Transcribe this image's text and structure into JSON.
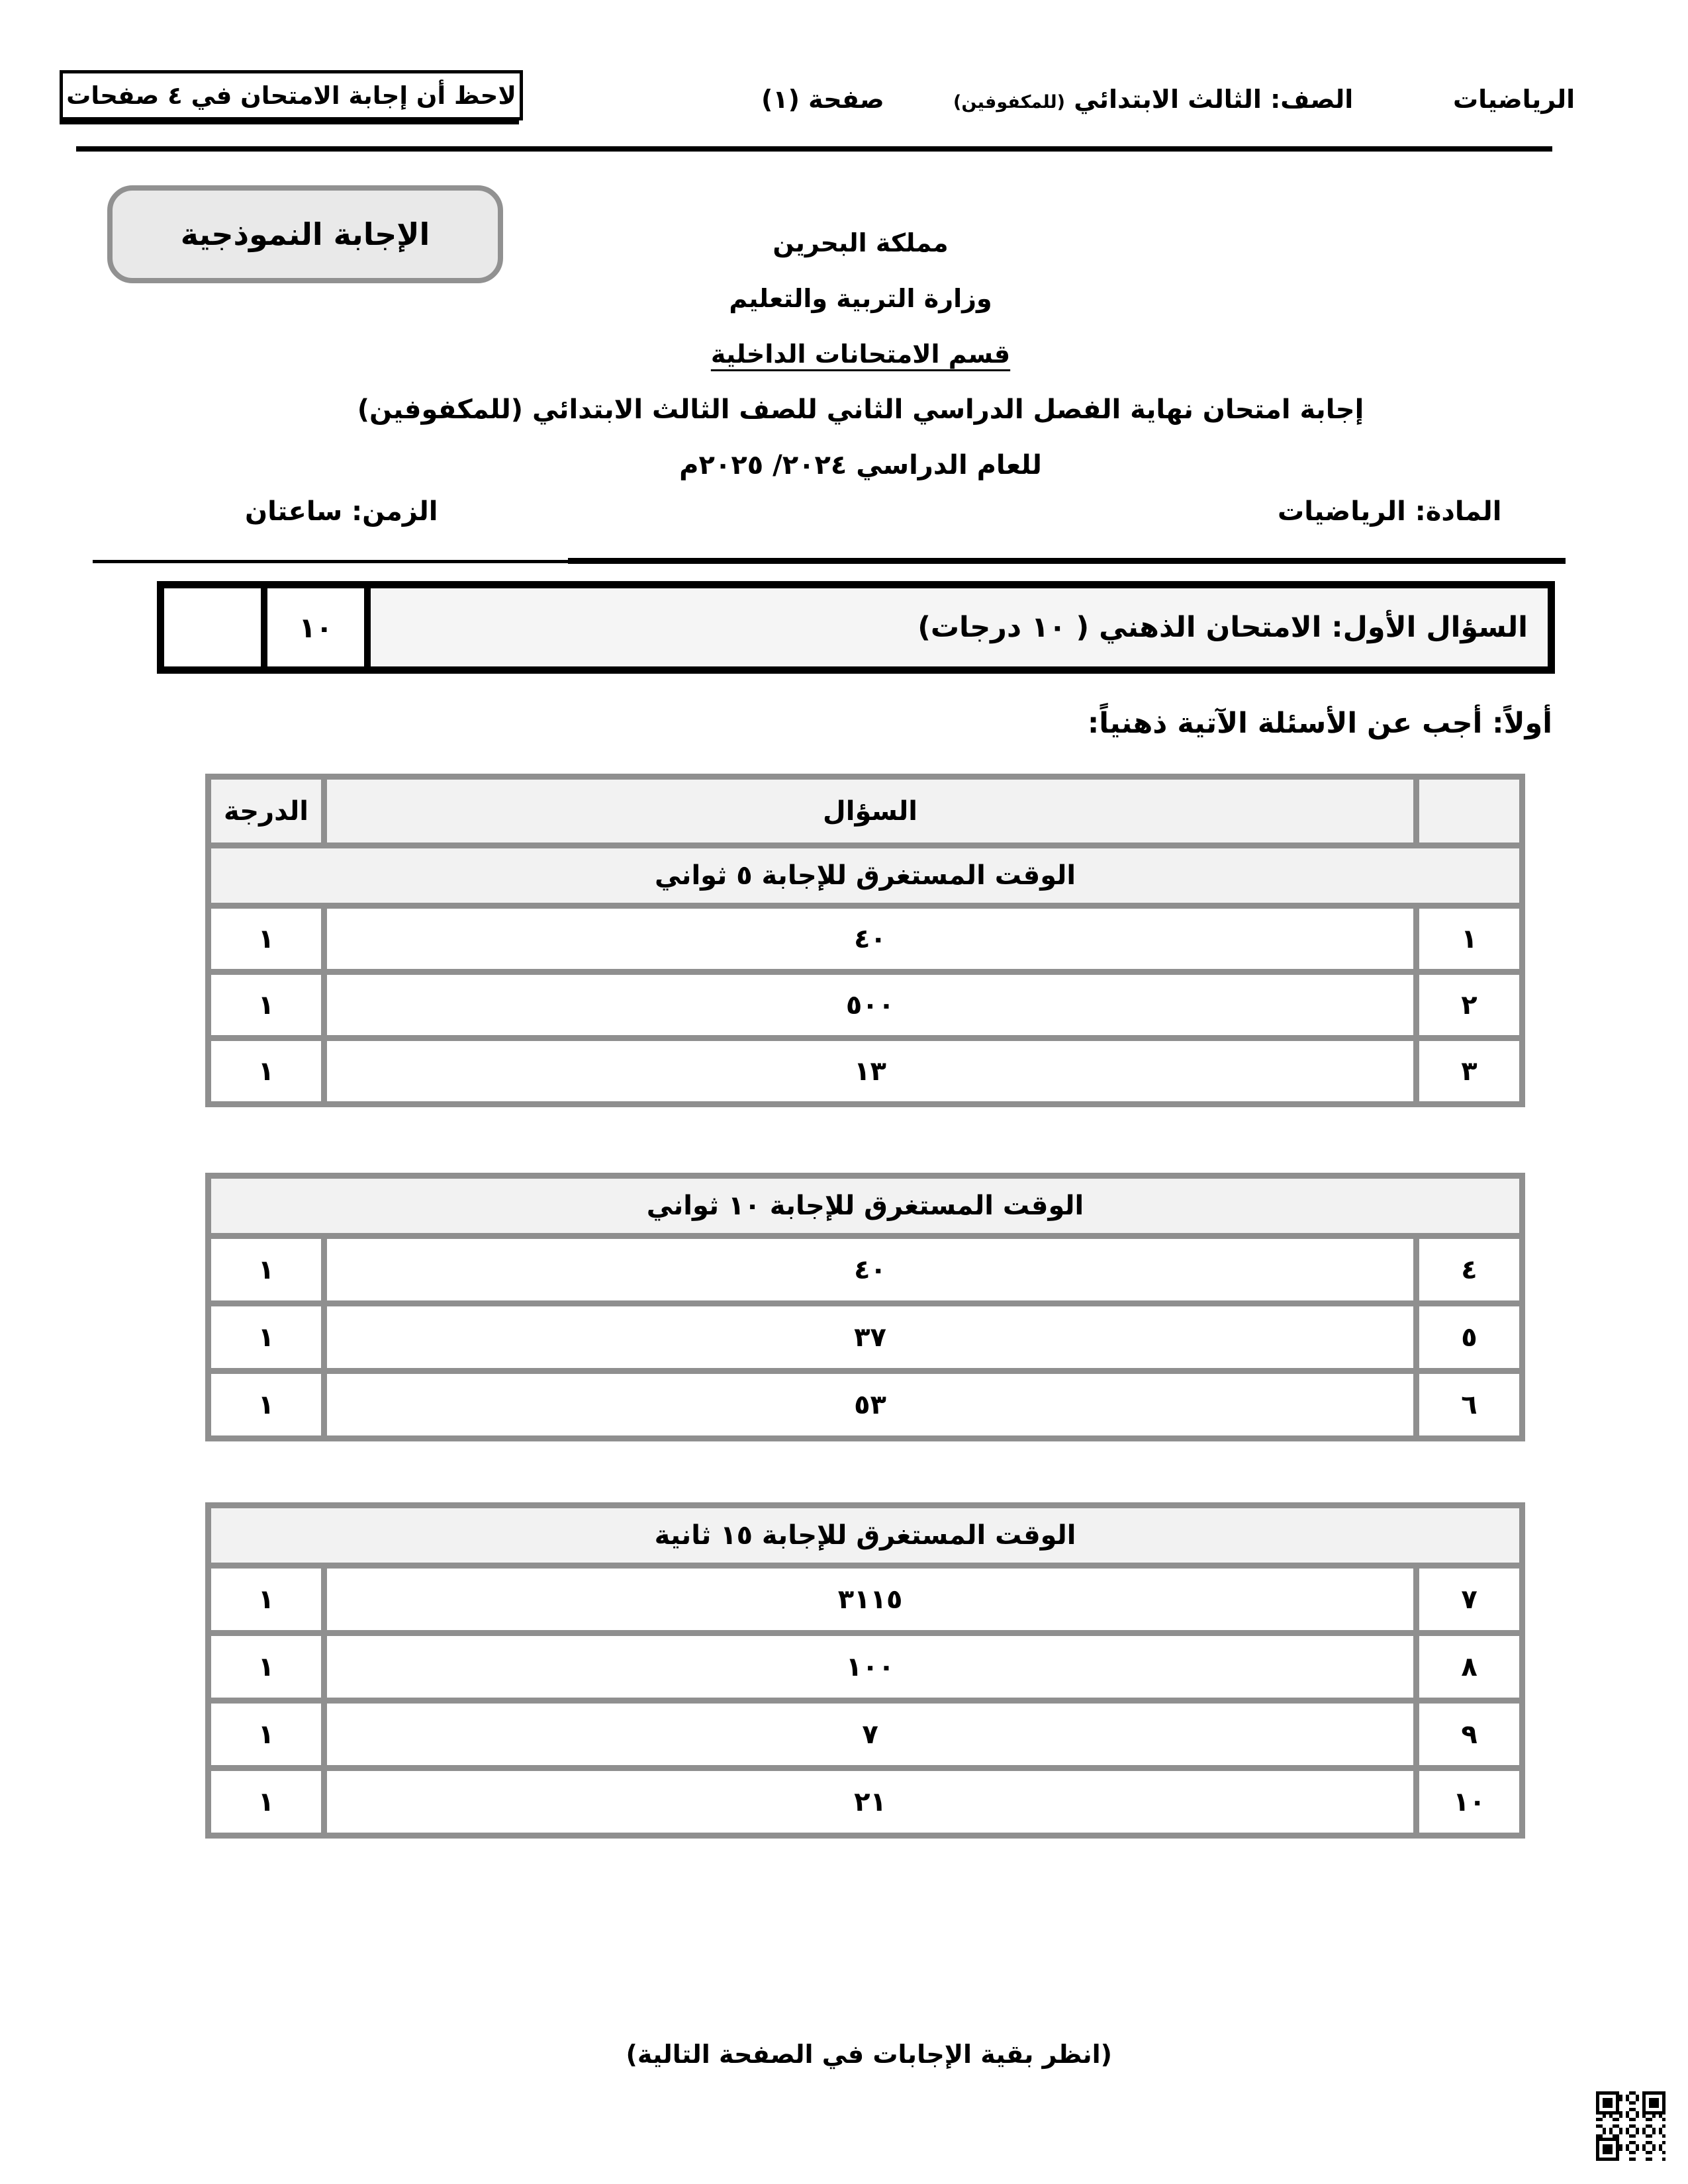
{
  "header": {
    "subject": "الرياضيات",
    "grade_label": "الصف: الثالث الابتدائي",
    "grade_note": "(للمكفوفين)",
    "page_label": "صفحة (١)",
    "note_box": "لاحظ أن إجابة الامتحان في ٤ صفحات"
  },
  "stamp_label": "الإجابة النموذجية",
  "letterhead": {
    "country": "مملكة البحرين",
    "ministry": "وزارة التربية والتعليم",
    "department": "قسم الامتحانات الداخلية",
    "exam_title": "إجابة امتحان نهاية الفصل الدراسي الثاني للصف الثالث الابتدائي (للمكفوفين)",
    "year": "للعام الدراسي ٢٠٢٤/ ٢٠٢٥م"
  },
  "meta": {
    "subject_line": "المادة: الرياضيات",
    "time_line": "الزمن: ساعتان"
  },
  "question1": {
    "title": "السؤال الأول: الامتحان الذهني ( ١٠ درجات)",
    "total_mark": "١٠",
    "instruction": "أولاً: أجب عن الأسئلة الآتية ذهنياً:"
  },
  "table_headers": {
    "mark": "الدرجة",
    "question": "السؤال"
  },
  "tables": [
    {
      "time_note": "الوقت المستغرق للإجابة ٥ ثواني",
      "rows": [
        {
          "num": "١",
          "answer": "٤٠",
          "mark": "١"
        },
        {
          "num": "٢",
          "answer": "٥٠٠",
          "mark": "١"
        },
        {
          "num": "٣",
          "answer": "١٣",
          "mark": "١"
        }
      ]
    },
    {
      "time_note": "الوقت المستغرق للإجابة ١٠ ثواني",
      "rows": [
        {
          "num": "٤",
          "answer": "٤٠",
          "mark": "١"
        },
        {
          "num": "٥",
          "answer": "٣٧",
          "mark": "١"
        },
        {
          "num": "٦",
          "answer": "٥٣",
          "mark": "١"
        }
      ]
    },
    {
      "time_note": "الوقت المستغرق للإجابة ١٥ ثانية",
      "rows": [
        {
          "num": "٧",
          "answer": "٣١١٥",
          "mark": "١"
        },
        {
          "num": "٨",
          "answer": "١٠٠",
          "mark": "١"
        },
        {
          "num": "٩",
          "answer": "٧",
          "mark": "١"
        },
        {
          "num": "١٠",
          "answer": "٢١",
          "mark": "١"
        }
      ]
    }
  ],
  "footer": {
    "continuation_note": "(انظر بقية الإجابات في الصفحة التالية)"
  },
  "colors": {
    "table_border": "#8f8f8f",
    "header_fill": "#f2f2f2",
    "stamp_border": "#919191",
    "stamp_fill": "#e9e9e9"
  }
}
